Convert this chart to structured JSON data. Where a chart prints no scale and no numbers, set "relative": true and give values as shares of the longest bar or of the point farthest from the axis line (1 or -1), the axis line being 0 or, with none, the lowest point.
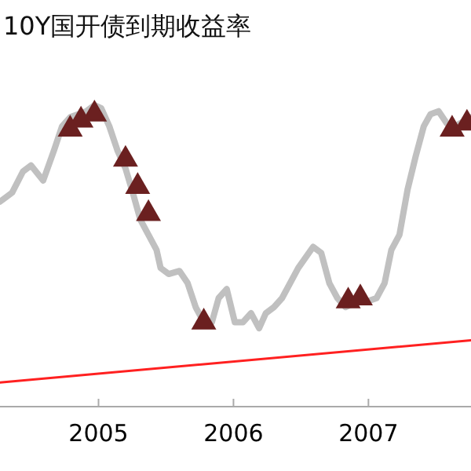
{
  "chart_data": {
    "type": "line",
    "title": "10Y国开债到期收益率",
    "relative": true,
    "xlim": [
      2004.27,
      2007.76
    ],
    "xticks": [
      2005,
      2006,
      2007
    ],
    "grid": false,
    "series": [
      {
        "color": "#c0c0c0",
        "x": [
          2004.27,
          2004.36,
          2004.44,
          2004.5,
          2004.59,
          2004.67,
          2004.73,
          2004.79,
          2004.85,
          2004.91,
          2004.97,
          2005.02,
          2005.08,
          2005.14,
          2005.2,
          2005.26,
          2005.31,
          2005.37,
          2005.43,
          2005.46,
          2005.52,
          2005.6,
          2005.66,
          2005.72,
          2005.78,
          2005.84,
          2005.89,
          2005.95,
          2006.01,
          2006.07,
          2006.13,
          2006.19,
          2006.24,
          2006.3,
          2006.36,
          2006.48,
          2006.59,
          2006.65,
          2006.71,
          2006.77,
          2006.83,
          2006.88,
          2006.94,
          2007,
          2007.06,
          2007.12,
          2007.17,
          2007.23,
          2007.29,
          2007.35,
          2007.41,
          2007.46,
          2007.52,
          2007.58,
          2007.64,
          2007.76
        ],
        "values": [
          0.68,
          0.71,
          0.78,
          0.8,
          0.75,
          0.85,
          0.93,
          0.96,
          0.97,
          0.98,
          1,
          0.99,
          0.93,
          0.85,
          0.79,
          0.7,
          0.62,
          0.57,
          0.52,
          0.46,
          0.44,
          0.45,
          0.41,
          0.33,
          0.28,
          0.28,
          0.36,
          0.39,
          0.28,
          0.28,
          0.31,
          0.26,
          0.31,
          0.33,
          0.36,
          0.46,
          0.53,
          0.51,
          0.41,
          0.36,
          0.33,
          0.34,
          0.36,
          0.35,
          0.36,
          0.41,
          0.52,
          0.57,
          0.72,
          0.83,
          0.93,
          0.97,
          0.98,
          0.94,
          0.93,
          0.96
        ]
      },
      {
        "type": "scatter",
        "color": "#6b2020",
        "marker": "triangle",
        "x": [
          2004.79,
          2004.87,
          2004.97,
          2005.2,
          2005.29,
          2005.37,
          2005.78,
          2006.85,
          2006.94,
          2007.62,
          2007.73
        ],
        "values": [
          0.92,
          0.95,
          0.97,
          0.82,
          0.73,
          0.64,
          0.28,
          0.35,
          0.36,
          0.92,
          0.94
        ]
      },
      {
        "color": "#ff2020",
        "x": [
          2004.27,
          2007.76
        ],
        "values": [
          0.08,
          0.22
        ]
      }
    ]
  }
}
